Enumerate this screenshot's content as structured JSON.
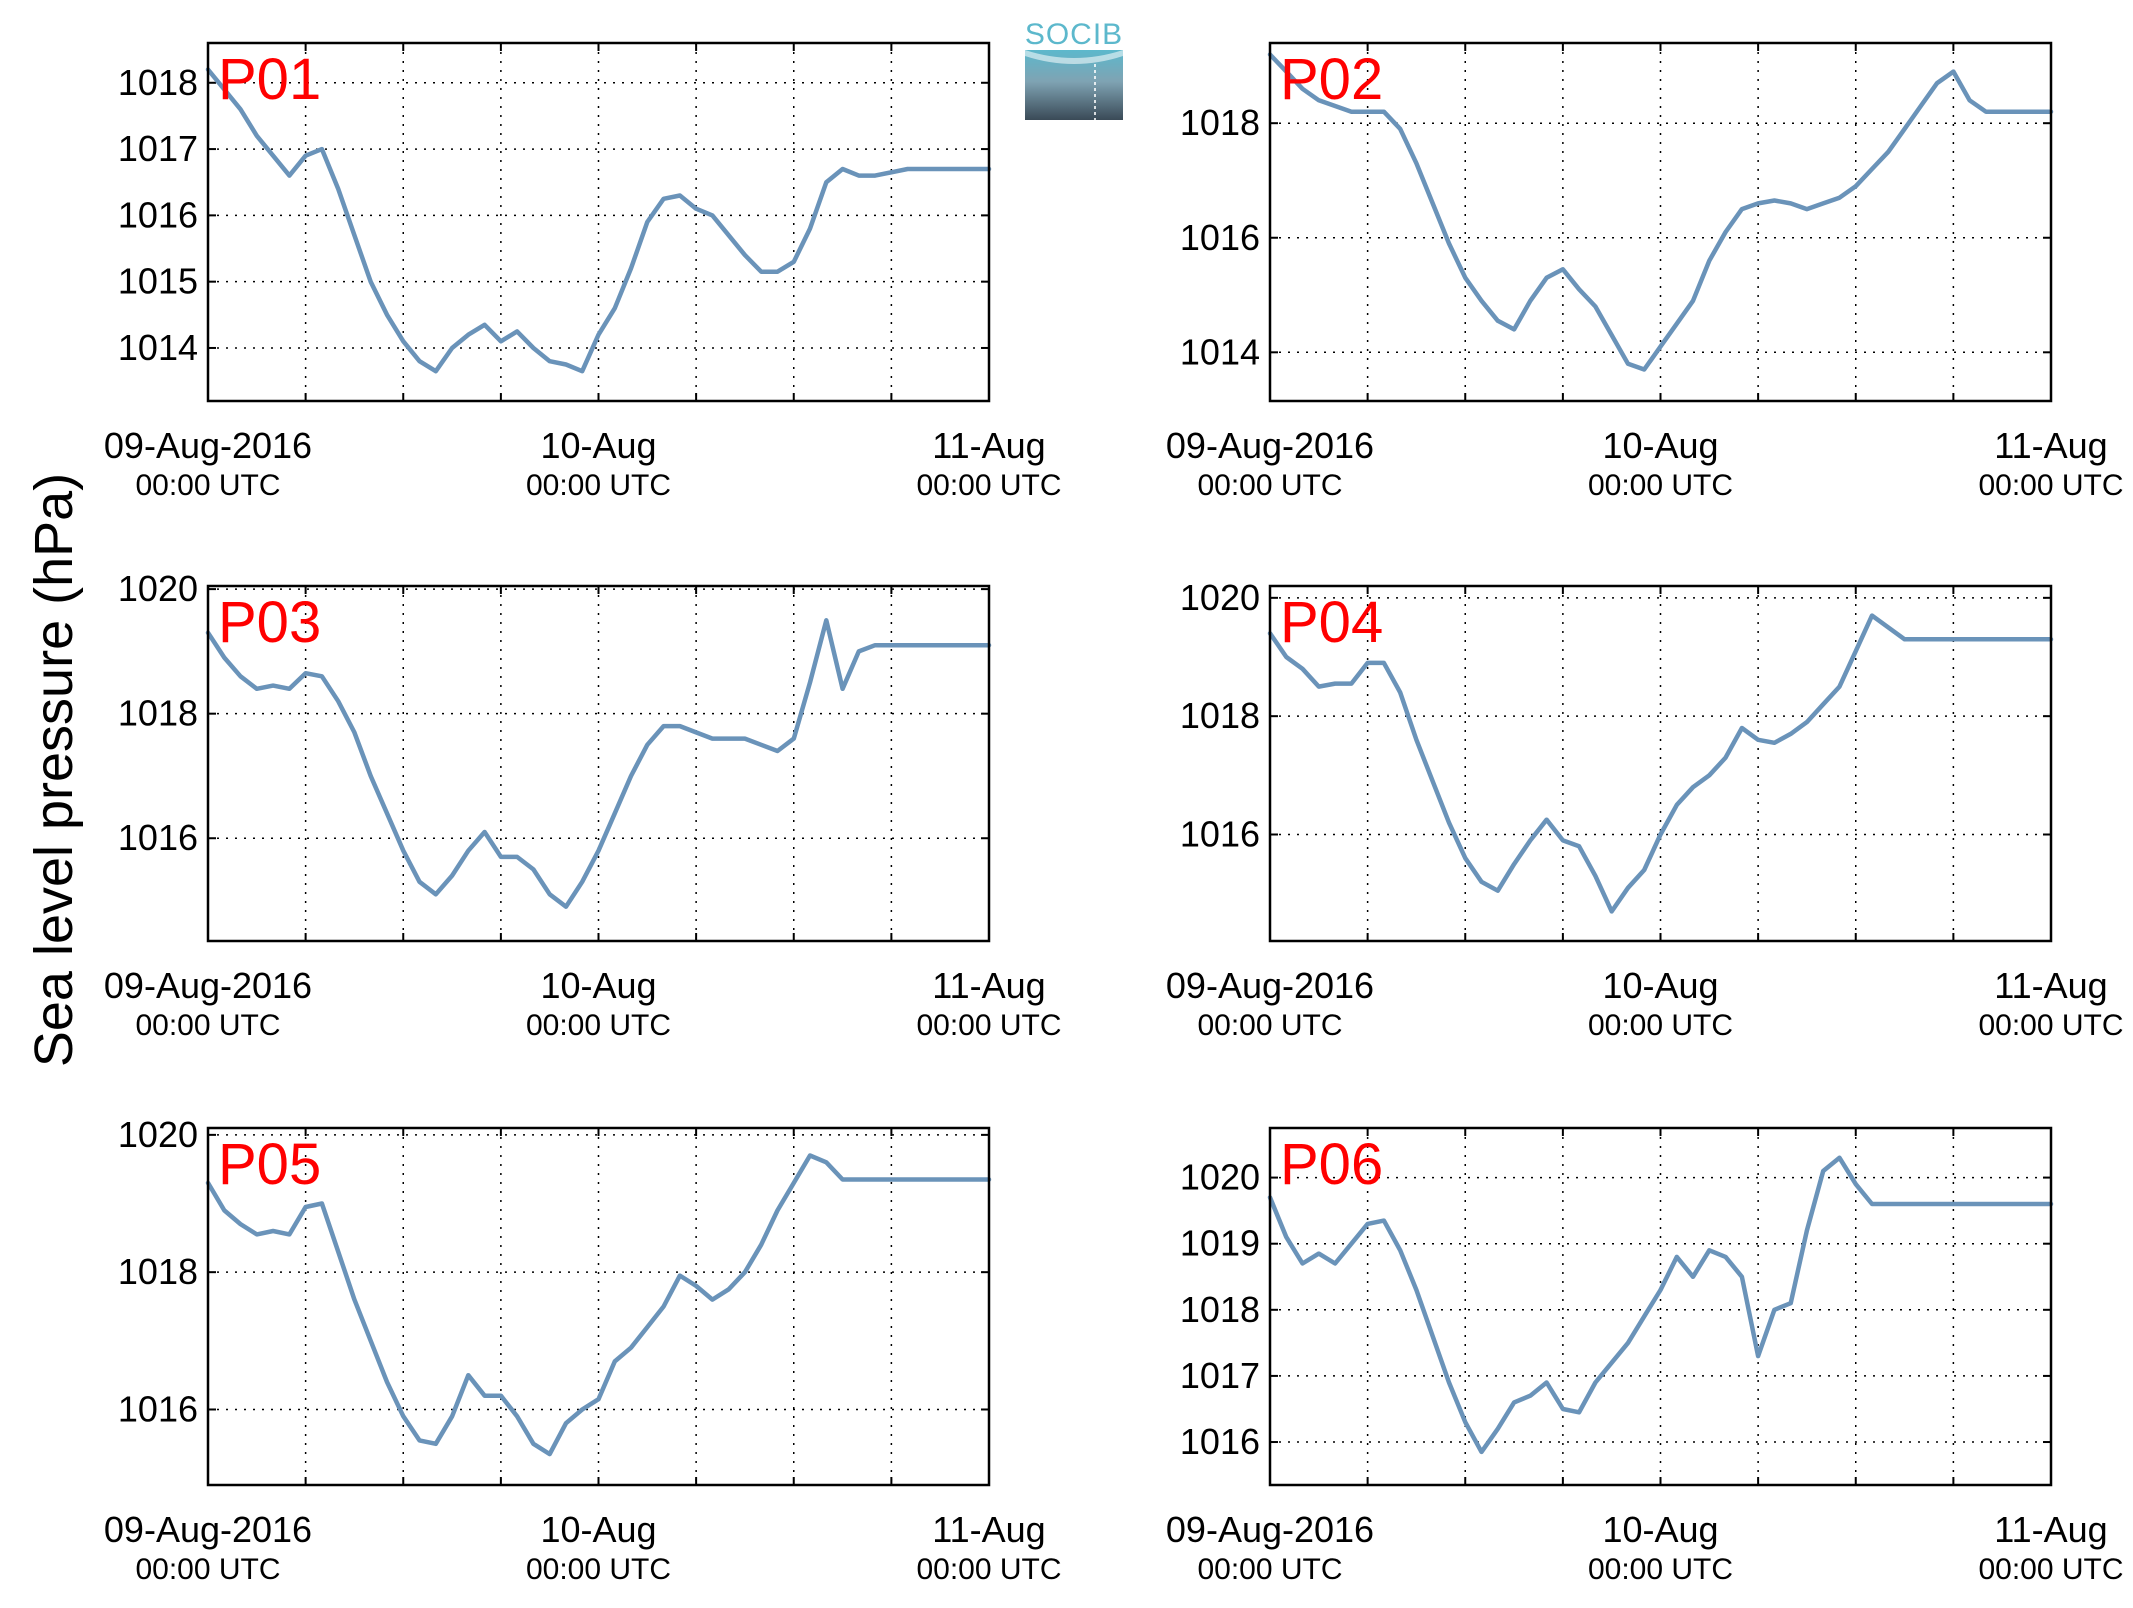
{
  "figure": {
    "ylabel": "Sea level pressure (hPa)",
    "logo_text": "SOCIB",
    "colors": {
      "line": "#6a93b9",
      "panel_label": "#ff0000",
      "grid": "#000000",
      "logo_top": "#5cb8cc",
      "logo_bottom": "#3a4a57"
    }
  },
  "chart_data": [
    {
      "type": "line",
      "label": "P01",
      "x_ticks": [
        {
          "major": "09-Aug-2016",
          "minor": "00:00 UTC"
        },
        {
          "major": "10-Aug",
          "minor": "00:00 UTC"
        },
        {
          "major": "11-Aug",
          "minor": "00:00 UTC"
        }
      ],
      "x_range_hours": [
        0,
        48
      ],
      "grid": true,
      "ylim": [
        1013.2,
        1018.6
      ],
      "yticks": [
        1014,
        1015,
        1016,
        1017,
        1018
      ],
      "x": [
        0,
        1,
        2,
        3,
        4,
        5,
        6,
        7,
        8,
        9,
        10,
        11,
        12,
        13,
        14,
        15,
        16,
        17,
        18,
        19,
        20,
        21,
        22,
        23,
        24,
        25,
        26,
        27,
        28,
        29,
        30,
        31,
        32,
        33,
        34,
        35,
        36,
        37,
        38,
        39,
        40,
        41,
        42,
        43,
        44,
        45,
        46,
        47,
        48
      ],
      "y": [
        1018.2,
        1017.9,
        1017.6,
        1017.2,
        1016.9,
        1016.6,
        1016.9,
        1017.0,
        1016.4,
        1015.7,
        1015.0,
        1014.5,
        1014.1,
        1013.8,
        1013.65,
        1014.0,
        1014.2,
        1014.35,
        1014.1,
        1014.25,
        1014.0,
        1013.8,
        1013.75,
        1013.65,
        1014.2,
        1014.6,
        1015.2,
        1015.9,
        1016.25,
        1016.3,
        1016.1,
        1016.0,
        1015.7,
        1015.4,
        1015.15,
        1015.15,
        1015.3,
        1015.8,
        1016.5,
        1016.7,
        1016.6,
        1016.6,
        1016.65,
        1016.7,
        1016.7,
        1016.7,
        1016.7,
        1016.7,
        1016.7
      ]
    },
    {
      "type": "line",
      "label": "P02",
      "x_ticks": [
        {
          "major": "09-Aug-2016",
          "minor": "00:00 UTC"
        },
        {
          "major": "10-Aug",
          "minor": "00:00 UTC"
        },
        {
          "major": "11-Aug",
          "minor": "00:00 UTC"
        }
      ],
      "x_range_hours": [
        0,
        48
      ],
      "grid": true,
      "ylim": [
        1013.15,
        1019.4
      ],
      "yticks": [
        1014,
        1016,
        1018
      ],
      "x": [
        0,
        1,
        2,
        3,
        4,
        5,
        6,
        7,
        8,
        9,
        10,
        11,
        12,
        13,
        14,
        15,
        16,
        17,
        18,
        19,
        20,
        21,
        22,
        23,
        24,
        25,
        26,
        27,
        28,
        29,
        30,
        31,
        32,
        33,
        34,
        35,
        36,
        37,
        38,
        39,
        40,
        41,
        42,
        43,
        44,
        45,
        46,
        47,
        48
      ],
      "y": [
        1019.2,
        1018.9,
        1018.6,
        1018.4,
        1018.3,
        1018.2,
        1018.2,
        1018.2,
        1017.9,
        1017.3,
        1016.6,
        1015.9,
        1015.3,
        1014.9,
        1014.55,
        1014.4,
        1014.9,
        1015.3,
        1015.45,
        1015.1,
        1014.8,
        1014.3,
        1013.8,
        1013.7,
        1014.1,
        1014.5,
        1014.9,
        1015.6,
        1016.1,
        1016.5,
        1016.6,
        1016.65,
        1016.6,
        1016.5,
        1016.6,
        1016.7,
        1016.9,
        1017.2,
        1017.5,
        1017.9,
        1018.3,
        1018.7,
        1018.9,
        1018.4,
        1018.2,
        1018.2,
        1018.2,
        1018.2,
        1018.2
      ]
    },
    {
      "type": "line",
      "label": "P03",
      "x_ticks": [
        {
          "major": "09-Aug-2016",
          "minor": "00:00 UTC"
        },
        {
          "major": "10-Aug",
          "minor": "00:00 UTC"
        },
        {
          "major": "11-Aug",
          "minor": "00:00 UTC"
        }
      ],
      "x_range_hours": [
        0,
        48
      ],
      "grid": true,
      "ylim": [
        1014.35,
        1020.05
      ],
      "yticks": [
        1016,
        1018,
        1020
      ],
      "x": [
        0,
        1,
        2,
        3,
        4,
        5,
        6,
        7,
        8,
        9,
        10,
        11,
        12,
        13,
        14,
        15,
        16,
        17,
        18,
        19,
        20,
        21,
        22,
        23,
        24,
        25,
        26,
        27,
        28,
        29,
        30,
        31,
        32,
        33,
        34,
        35,
        36,
        37,
        38,
        39,
        40,
        41,
        42,
        43,
        44,
        45,
        46,
        47,
        48
      ],
      "y": [
        1019.3,
        1018.9,
        1018.6,
        1018.4,
        1018.45,
        1018.4,
        1018.65,
        1018.6,
        1018.2,
        1017.7,
        1017.0,
        1016.4,
        1015.8,
        1015.3,
        1015.1,
        1015.4,
        1015.8,
        1016.1,
        1015.7,
        1015.7,
        1015.5,
        1015.1,
        1014.9,
        1015.3,
        1015.8,
        1016.4,
        1017.0,
        1017.5,
        1017.8,
        1017.8,
        1017.7,
        1017.6,
        1017.6,
        1017.6,
        1017.5,
        1017.4,
        1017.6,
        1018.5,
        1019.5,
        1018.4,
        1019.0,
        1019.1,
        1019.1,
        1019.1,
        1019.1,
        1019.1,
        1019.1,
        1019.1,
        1019.1
      ]
    },
    {
      "type": "line",
      "label": "P04",
      "x_ticks": [
        {
          "major": "09-Aug-2016",
          "minor": "00:00 UTC"
        },
        {
          "major": "10-Aug",
          "minor": "00:00 UTC"
        },
        {
          "major": "11-Aug",
          "minor": "00:00 UTC"
        }
      ],
      "x_range_hours": [
        0,
        48
      ],
      "grid": true,
      "ylim": [
        1014.2,
        1020.2
      ],
      "yticks": [
        1016,
        1018,
        1020
      ],
      "x": [
        0,
        1,
        2,
        3,
        4,
        5,
        6,
        7,
        8,
        9,
        10,
        11,
        12,
        13,
        14,
        15,
        16,
        17,
        18,
        19,
        20,
        21,
        22,
        23,
        24,
        25,
        26,
        27,
        28,
        29,
        30,
        31,
        32,
        33,
        34,
        35,
        36,
        37,
        38,
        39,
        40,
        41,
        42,
        43,
        44,
        45,
        46,
        47,
        48
      ],
      "y": [
        1019.4,
        1019.0,
        1018.8,
        1018.5,
        1018.55,
        1018.55,
        1018.9,
        1018.9,
        1018.4,
        1017.6,
        1016.9,
        1016.2,
        1015.6,
        1015.2,
        1015.05,
        1015.5,
        1015.9,
        1016.25,
        1015.9,
        1015.8,
        1015.3,
        1014.7,
        1015.1,
        1015.4,
        1016.0,
        1016.5,
        1016.8,
        1017.0,
        1017.3,
        1017.8,
        1017.6,
        1017.55,
        1017.7,
        1017.9,
        1018.2,
        1018.5,
        1019.1,
        1019.7,
        1019.5,
        1019.3,
        1019.3,
        1019.3,
        1019.3,
        1019.3,
        1019.3,
        1019.3,
        1019.3,
        1019.3,
        1019.3
      ]
    },
    {
      "type": "line",
      "label": "P05",
      "x_ticks": [
        {
          "major": "09-Aug-2016",
          "minor": "00:00 UTC"
        },
        {
          "major": "10-Aug",
          "minor": "00:00 UTC"
        },
        {
          "major": "11-Aug",
          "minor": "00:00 UTC"
        }
      ],
      "x_range_hours": [
        0,
        48
      ],
      "grid": true,
      "ylim": [
        1014.9,
        1020.1
      ],
      "yticks": [
        1016,
        1018,
        1020
      ],
      "x": [
        0,
        1,
        2,
        3,
        4,
        5,
        6,
        7,
        8,
        9,
        10,
        11,
        12,
        13,
        14,
        15,
        16,
        17,
        18,
        19,
        20,
        21,
        22,
        23,
        24,
        25,
        26,
        27,
        28,
        29,
        30,
        31,
        32,
        33,
        34,
        35,
        36,
        37,
        38,
        39,
        40,
        41,
        42,
        43,
        44,
        45,
        46,
        47,
        48
      ],
      "y": [
        1019.3,
        1018.9,
        1018.7,
        1018.55,
        1018.6,
        1018.55,
        1018.95,
        1019.0,
        1018.3,
        1017.6,
        1017.0,
        1016.4,
        1015.9,
        1015.55,
        1015.5,
        1015.9,
        1016.5,
        1016.2,
        1016.2,
        1015.9,
        1015.5,
        1015.35,
        1015.8,
        1016.0,
        1016.15,
        1016.7,
        1016.9,
        1017.2,
        1017.5,
        1017.95,
        1017.8,
        1017.6,
        1017.75,
        1018.0,
        1018.4,
        1018.9,
        1019.3,
        1019.7,
        1019.6,
        1019.35,
        1019.35,
        1019.35,
        1019.35,
        1019.35,
        1019.35,
        1019.35,
        1019.35,
        1019.35,
        1019.35
      ]
    },
    {
      "type": "line",
      "label": "P06",
      "x_ticks": [
        {
          "major": "09-Aug-2016",
          "minor": "00:00 UTC"
        },
        {
          "major": "10-Aug",
          "minor": "00:00 UTC"
        },
        {
          "major": "11-Aug",
          "minor": "00:00 UTC"
        }
      ],
      "x_range_hours": [
        0,
        48
      ],
      "grid": true,
      "ylim": [
        1015.35,
        1020.75
      ],
      "yticks": [
        1016,
        1017,
        1018,
        1019,
        1020
      ],
      "x": [
        0,
        1,
        2,
        3,
        4,
        5,
        6,
        7,
        8,
        9,
        10,
        11,
        12,
        13,
        14,
        15,
        16,
        17,
        18,
        19,
        20,
        21,
        22,
        23,
        24,
        25,
        26,
        27,
        28,
        29,
        30,
        31,
        32,
        33,
        34,
        35,
        36,
        37,
        38,
        39,
        40,
        41,
        42,
        43,
        44,
        45,
        46,
        47,
        48
      ],
      "y": [
        1019.7,
        1019.1,
        1018.7,
        1018.85,
        1018.7,
        1019.0,
        1019.3,
        1019.35,
        1018.9,
        1018.3,
        1017.6,
        1016.9,
        1016.3,
        1015.85,
        1016.2,
        1016.6,
        1016.7,
        1016.9,
        1016.5,
        1016.45,
        1016.9,
        1017.2,
        1017.5,
        1017.9,
        1018.3,
        1018.8,
        1018.5,
        1018.9,
        1018.8,
        1018.5,
        1017.3,
        1018.0,
        1018.1,
        1019.2,
        1020.1,
        1020.3,
        1019.9,
        1019.6,
        1019.6,
        1019.6,
        1019.6,
        1019.6,
        1019.6,
        1019.6,
        1019.6,
        1019.6,
        1019.6,
        1019.6,
        1019.6
      ]
    }
  ]
}
